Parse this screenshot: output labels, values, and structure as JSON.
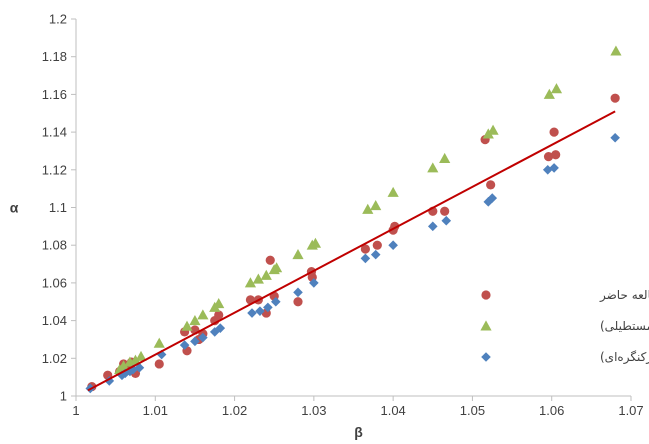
{
  "chart_data": {
    "type": "scatter",
    "title": "",
    "xlabel": "β",
    "ylabel": "α",
    "xlim": [
      1,
      1.07
    ],
    "ylim": [
      1,
      1.2
    ],
    "xticks": [
      1,
      1.01,
      1.02,
      1.03,
      1.04,
      1.05,
      1.06,
      1.07
    ],
    "yticks": [
      1,
      1.02,
      1.04,
      1.06,
      1.08,
      1.1,
      1.12,
      1.14,
      1.16,
      1.18,
      1.2
    ],
    "grid": false,
    "legend_position": "right",
    "colors": {
      "axis": "#bfbfbf",
      "trendline": "#c00000"
    },
    "series": [
      {
        "name": "مطالعه حاضر",
        "marker": "circle",
        "color": "#c0504d",
        "x": [
          1.002,
          1.004,
          1.0055,
          1.006,
          1.0065,
          1.007,
          1.0075,
          1.0105,
          1.0137,
          1.014,
          1.015,
          1.0155,
          1.016,
          1.0175,
          1.018,
          1.022,
          1.023,
          1.024,
          1.0245,
          1.025,
          1.028,
          1.0297,
          1.0298,
          1.0365,
          1.038,
          1.04,
          1.0402,
          1.045,
          1.0465,
          1.0516,
          1.0523,
          1.0596,
          1.0603,
          1.0605,
          1.068
        ],
        "y": [
          1.005,
          1.011,
          1.013,
          1.017,
          1.015,
          1.018,
          1.012,
          1.017,
          1.034,
          1.024,
          1.035,
          1.03,
          1.033,
          1.04,
          1.043,
          1.051,
          1.051,
          1.044,
          1.072,
          1.053,
          1.05,
          1.066,
          1.063,
          1.078,
          1.08,
          1.088,
          1.09,
          1.098,
          1.098,
          1.136,
          1.112,
          1.127,
          1.14,
          1.128,
          1.158
        ]
      },
      {
        "name": "وتوليتی (سرریزمستطیلی)",
        "marker": "triangle",
        "color": "#9bbb59",
        "x": [
          1.0055,
          1.006,
          1.0068,
          1.0075,
          1.0082,
          1.0105,
          1.014,
          1.015,
          1.016,
          1.0175,
          1.018,
          1.022,
          1.023,
          1.024,
          1.025,
          1.0253,
          1.028,
          1.0298,
          1.0302,
          1.0368,
          1.0378,
          1.04,
          1.045,
          1.0465,
          1.052,
          1.0526,
          1.0597,
          1.0606,
          1.0681
        ],
        "y": [
          1.014,
          1.016,
          1.018,
          1.019,
          1.021,
          1.028,
          1.037,
          1.04,
          1.043,
          1.047,
          1.049,
          1.06,
          1.062,
          1.064,
          1.067,
          1.068,
          1.075,
          1.08,
          1.081,
          1.099,
          1.101,
          1.108,
          1.121,
          1.126,
          1.139,
          1.141,
          1.16,
          1.163,
          1.183
        ]
      },
      {
        "name": "بختیاری(سرریزکنگره‌ای)",
        "marker": "diamond",
        "color": "#4f81bd",
        "x": [
          1.0018,
          1.0042,
          1.0058,
          1.0062,
          1.0068,
          1.0072,
          1.008,
          1.0108,
          1.0137,
          1.015,
          1.016,
          1.0175,
          1.0182,
          1.0222,
          1.0232,
          1.0242,
          1.0252,
          1.028,
          1.03,
          1.0365,
          1.0378,
          1.04,
          1.045,
          1.0467,
          1.052,
          1.0525,
          1.0595,
          1.0603,
          1.068
        ],
        "y": [
          1.004,
          1.008,
          1.011,
          1.012,
          1.013,
          1.014,
          1.015,
          1.022,
          1.027,
          1.029,
          1.031,
          1.034,
          1.036,
          1.044,
          1.045,
          1.047,
          1.05,
          1.055,
          1.06,
          1.073,
          1.075,
          1.08,
          1.09,
          1.093,
          1.103,
          1.105,
          1.12,
          1.121,
          1.137
        ]
      }
    ],
    "trendline": {
      "type": "linear",
      "x": [
        1.0015,
        1.068
      ],
      "y": [
        1.003,
        1.151
      ]
    }
  }
}
